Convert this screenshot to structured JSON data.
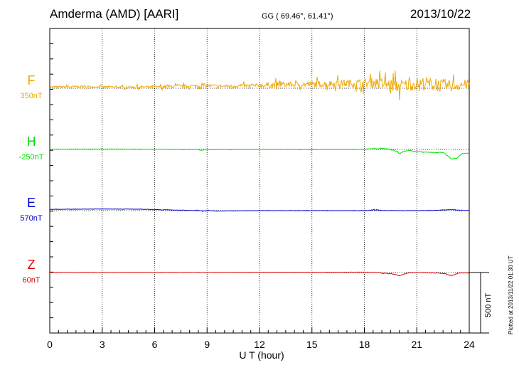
{
  "header": {
    "station": "Amderma (AMD)  [AARI]",
    "coords": "GG ( 69.46°,  61.41°)",
    "date": "2013/10/22"
  },
  "credit": "Plotted at 2013/11/22 01:30 UT",
  "chart_data": {
    "type": "line",
    "xlabel": "U T (hour)",
    "xlim": [
      0,
      24
    ],
    "xticks": [
      0,
      3,
      6,
      9,
      12,
      15,
      18,
      21,
      24
    ],
    "grid": "vertical dotted lines every 3 hours",
    "scale_bar": {
      "label": "500 nT",
      "value": 500
    },
    "series": [
      {
        "name": "F",
        "baseline_label": "350nT",
        "baseline": 350,
        "color": "#f0a800",
        "x": [
          0,
          2,
          4,
          6,
          8,
          9,
          10,
          12,
          13,
          14,
          15,
          16,
          17,
          18,
          18.5,
          19,
          19.5,
          20,
          20.5,
          21,
          21.5,
          22,
          22.5,
          23,
          23.5,
          24
        ],
        "y": [
          355,
          357,
          355,
          356,
          360,
          361,
          359,
          362,
          366,
          366,
          368,
          370,
          372,
          372,
          375,
          370,
          363,
          360,
          364,
          370,
          372,
          366,
          362,
          361,
          364,
          368
        ],
        "noise": [
          6,
          7,
          6,
          7,
          10,
          10,
          9,
          12,
          18,
          16,
          20,
          22,
          24,
          28,
          32,
          38,
          40,
          42,
          40,
          38,
          42,
          44,
          40,
          36,
          34,
          30
        ]
      },
      {
        "name": "H",
        "baseline_label": "-250nT",
        "baseline": -250,
        "color": "#00e000",
        "x": [
          0,
          3,
          6,
          8.5,
          8.7,
          8.9,
          9.2,
          12,
          15,
          18,
          18.7,
          19,
          19.4,
          19.7,
          20.0,
          20.2,
          20.5,
          21,
          21.5,
          22,
          22.5,
          22.8,
          23.0,
          23.3,
          23.6,
          24
        ],
        "y": [
          -249,
          -248,
          -249,
          -251,
          -255,
          -250,
          -251,
          -250,
          -251,
          -250,
          -245,
          -246,
          -247,
          -256,
          -268,
          -262,
          -255,
          -260,
          -263,
          -265,
          -264,
          -285,
          -298,
          -292,
          -270,
          -268
        ],
        "noise": [
          1,
          1,
          1,
          2,
          3,
          2,
          1,
          1,
          1,
          1,
          4,
          4,
          3,
          3,
          3,
          3,
          2,
          2,
          2,
          2,
          2,
          3,
          3,
          3,
          2,
          1
        ]
      },
      {
        "name": "E",
        "baseline_label": "570nT",
        "baseline": 570,
        "color": "#0000d0",
        "x": [
          0,
          3,
          5,
          7,
          8.5,
          8.8,
          9.1,
          9.5,
          12,
          15,
          18,
          18.7,
          19,
          20,
          21,
          22,
          23,
          23.5,
          24
        ],
        "y": [
          576,
          578,
          577,
          573,
          570,
          567,
          571,
          568,
          570,
          570,
          570,
          573,
          571,
          570,
          570,
          571,
          575,
          572,
          570
        ],
        "noise": [
          1,
          1,
          1,
          1,
          2,
          3,
          2,
          1,
          1,
          1,
          1,
          3,
          2,
          1,
          1,
          1,
          2,
          1,
          1
        ]
      },
      {
        "name": "Z",
        "baseline_label": "60nT",
        "baseline": 60,
        "color": "#e00000",
        "x": [
          0,
          3,
          6,
          9,
          12,
          15,
          18,
          18.5,
          19,
          19.5,
          19.8,
          20.0,
          20.2,
          20.5,
          21,
          22,
          22.6,
          22.9,
          23.1,
          23.4,
          24
        ],
        "y": [
          60,
          60,
          60,
          60,
          61,
          61,
          62,
          61,
          57,
          55,
          50,
          44,
          50,
          58,
          60,
          58,
          55,
          46,
          47,
          58,
          58
        ],
        "noise": [
          0.5,
          0.5,
          0.5,
          0.5,
          0.5,
          0.5,
          0.5,
          1,
          2,
          1,
          1,
          1,
          1,
          1,
          1,
          1,
          1,
          1,
          1,
          1,
          0.5
        ]
      }
    ]
  }
}
